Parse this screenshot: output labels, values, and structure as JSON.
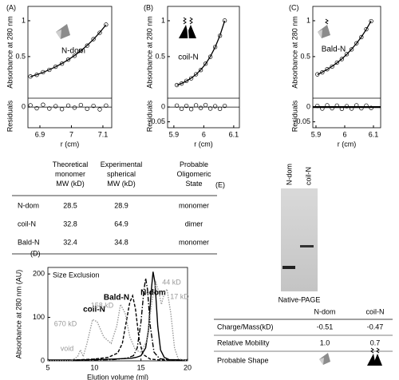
{
  "chart_data": [
    {
      "type": "scatter",
      "panel_label": "(A)",
      "annotation": "N-dom",
      "ylabel": "Absorbance at 280 nm",
      "residual_label": "Residuals",
      "xlabel": "r (cm)",
      "xlim": [
        6.862,
        7.128
      ],
      "xticks": [
        6.9,
        7,
        7.1
      ],
      "ylim": [
        -0.08,
        1.2
      ],
      "yticks": [
        0.5,
        1
      ],
      "residual_ylim": [
        -0.07,
        0.03
      ],
      "residual_yticks": [
        0
      ],
      "x": [
        6.87,
        6.89,
        6.91,
        6.93,
        6.95,
        6.97,
        6.99,
        7.01,
        7.03,
        7.05,
        7.07,
        7.09,
        7.11
      ],
      "values": [
        0.223,
        0.246,
        0.283,
        0.315,
        0.359,
        0.401,
        0.458,
        0.511,
        0.584,
        0.653,
        0.743,
        0.833,
        0.946
      ],
      "fit": [
        0.22,
        0.248,
        0.28,
        0.317,
        0.357,
        0.404,
        0.456,
        0.514,
        0.581,
        0.656,
        0.74,
        0.836,
        0.943
      ],
      "residuals": [
        0.006,
        -0.004,
        0.008,
        -0.005,
        0.003,
        -0.007,
        0.005,
        -0.002,
        0.007,
        -0.006,
        0.004,
        -0.008,
        0.005
      ]
    },
    {
      "type": "scatter",
      "panel_label": "(B)",
      "annotation": "coil-N",
      "ylabel": "Absorbance at 280 nm",
      "residual_label": "Residuals",
      "xlabel": "r (cm)",
      "xlim": [
        5.879,
        6.119
      ],
      "xticks": [
        5.9,
        6,
        6.1
      ],
      "ylim": [
        -0.08,
        1.2
      ],
      "yticks": [
        0.5,
        1
      ],
      "residual_ylim": [
        -0.07,
        0.03
      ],
      "residual_yticks": [
        0,
        -0.05
      ],
      "x": [
        5.91,
        5.926,
        5.942,
        5.958,
        5.974,
        5.99,
        6.006,
        6.022,
        6.038,
        6.054,
        6.07
      ],
      "values": [
        0.103,
        0.124,
        0.162,
        0.197,
        0.254,
        0.313,
        0.401,
        0.498,
        0.634,
        0.791,
        1.003
      ],
      "fit": [
        0.1,
        0.126,
        0.159,
        0.2,
        0.251,
        0.316,
        0.398,
        0.501,
        0.631,
        0.794,
        1.0
      ],
      "residuals": [
        0.005,
        -0.006,
        0.004,
        -0.007,
        0.006,
        -0.003,
        0.007,
        -0.005,
        0.003,
        -0.006,
        0.004
      ]
    },
    {
      "type": "scatter",
      "panel_label": "(C)",
      "annotation": "Bald-N",
      "ylabel": "Absorbance at 280 nm",
      "residual_label": "Residuals",
      "xlabel": "r (cm)",
      "xlim": [
        5.889,
        6.125
      ],
      "xticks": [
        5.9,
        6,
        6.1
      ],
      "ylim": [
        -0.08,
        1.2
      ],
      "yticks": [
        0.5,
        1
      ],
      "residual_ylim": [
        -0.07,
        0.03
      ],
      "residual_yticks": [
        0,
        -0.05
      ],
      "x": [
        5.905,
        5.922,
        5.939,
        5.956,
        5.973,
        5.99,
        6.007,
        6.024,
        6.041,
        6.058,
        6.075,
        6.092
      ],
      "values": [
        0.253,
        0.281,
        0.324,
        0.361,
        0.416,
        0.466,
        0.534,
        0.6,
        0.686,
        0.772,
        0.882,
        0.994
      ],
      "fit": [
        0.25,
        0.284,
        0.321,
        0.364,
        0.413,
        0.469,
        0.531,
        0.603,
        0.683,
        0.775,
        0.879,
        0.997
      ],
      "residuals": [
        0.004,
        -0.005,
        0.006,
        -0.004,
        0.005,
        -0.006,
        0.003,
        -0.005,
        0.006,
        -0.004,
        0.005,
        -0.003
      ]
    },
    {
      "type": "line",
      "panel_label": "(D)",
      "subtitle": "Size Exclusion",
      "ylabel": "Absorbance at 280 nm (AU)",
      "xlabel": "Elution volume (ml)",
      "xlim": [
        5,
        20
      ],
      "xticks": [
        5,
        10,
        15,
        20
      ],
      "ylim": [
        0,
        215
      ],
      "yticks": [
        0,
        100,
        200
      ],
      "series": [
        {
          "name": "N-dom",
          "color": "#000000",
          "style": "solid",
          "x": [
            5,
            8,
            10,
            12,
            14,
            14.5,
            15,
            15.5,
            15.8,
            16.1,
            16.3,
            16.5,
            16.8,
            17.1,
            17.5,
            18,
            20
          ],
          "values": [
            2,
            2,
            3,
            4,
            6,
            8,
            12,
            30,
            70,
            160,
            205,
            180,
            80,
            25,
            8,
            3,
            2
          ]
        },
        {
          "name": "Bald-N",
          "color": "#000000",
          "style": "dashdot",
          "x": [
            5,
            8,
            10,
            12,
            13.5,
            14.2,
            14.6,
            15,
            15.3,
            15.5,
            15.7,
            16,
            16.4,
            17,
            18,
            20
          ],
          "values": [
            1,
            1,
            2,
            3,
            6,
            12,
            30,
            90,
            160,
            190,
            165,
            80,
            20,
            5,
            2,
            1
          ]
        },
        {
          "name": "coil-N",
          "color": "#000000",
          "style": "dashed",
          "x": [
            5,
            8,
            10,
            11.5,
            12.5,
            13,
            13.5,
            13.8,
            14.1,
            14.4,
            14.8,
            15.2,
            16,
            17,
            20
          ],
          "values": [
            1,
            2,
            4,
            8,
            18,
            40,
            100,
            135,
            150,
            120,
            50,
            15,
            4,
            2,
            1
          ]
        },
        {
          "color": "#9a9a9a",
          "style": "dotted",
          "peak_labels": [
            "void",
            "670 kD",
            "158 kD",
            "44 kD",
            "17 kD"
          ],
          "x": [
            5,
            7.5,
            8.2,
            8.5,
            8.8,
            9.2,
            9.8,
            10.3,
            11,
            11.8,
            12.4,
            12.8,
            13.3,
            13.8,
            14.4,
            15,
            15.6,
            16.2,
            16.6,
            16.9,
            17.2,
            17.5,
            17.8,
            18.2,
            18.6,
            19,
            20
          ],
          "values": [
            0,
            0,
            10,
            25,
            10,
            40,
            95,
            90,
            55,
            40,
            80,
            130,
            110,
            55,
            25,
            20,
            45,
            140,
            180,
            160,
            130,
            155,
            165,
            110,
            30,
            5,
            0
          ]
        }
      ]
    }
  ],
  "table": {
    "header": [
      "Theoretical\nmonomer\nMW (kD)",
      "Experimental\nspherical\nMW (kD)",
      "Probable\nOligomeric\nState"
    ],
    "rows": [
      [
        "N-dom",
        "28.5",
        "28.9",
        "monomer"
      ],
      [
        "coil-N",
        "32.8",
        "64.9",
        "dimer"
      ],
      [
        "Bald-N",
        "32.4",
        "34.8",
        "monomer"
      ]
    ]
  },
  "gel": {
    "panel_label": "(E)",
    "lanes": [
      "N-dom",
      "coil-N"
    ],
    "caption": "Native-PAGE",
    "table": {
      "header": [
        "N-dom",
        "coil-N"
      ],
      "rows": [
        [
          "Charge/Mass(kD)",
          "-0.51",
          "-0.47"
        ],
        [
          "Relative Mobility",
          "1.0",
          "0.7"
        ],
        [
          "Probable Shape"
        ]
      ]
    }
  }
}
